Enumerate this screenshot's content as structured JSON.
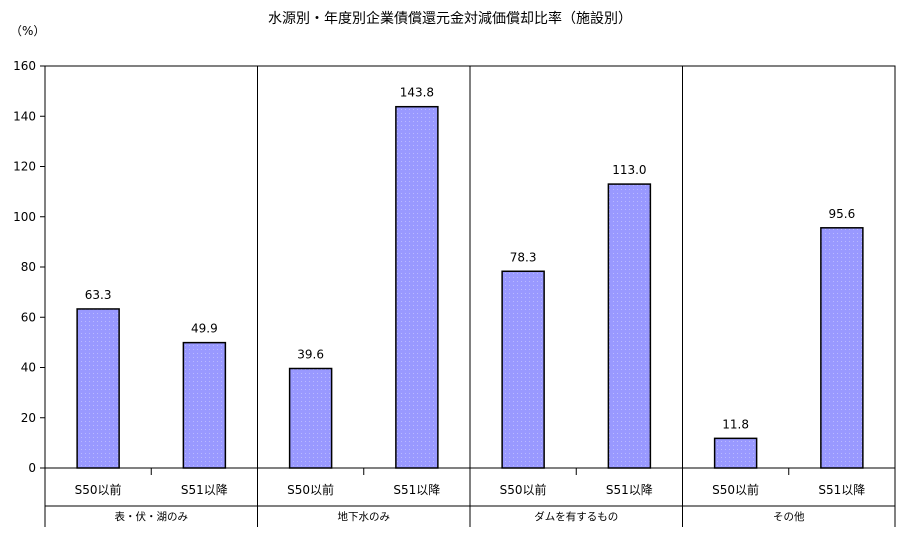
{
  "chart_data": {
    "type": "bar",
    "title": "水源別・年度別企業債償還元金対減価償却比率（施設別）",
    "ylabel": "（%）",
    "ylim": [
      0,
      160
    ],
    "yticks": [
      0,
      20,
      40,
      60,
      80,
      100,
      120,
      140,
      160
    ],
    "grid": false,
    "legend": "none",
    "bar_color": "#9999ff",
    "groups": [
      {
        "name": "表・伏・湖のみ",
        "categories": [
          "S50以前",
          "S51以降"
        ],
        "values": [
          63.3,
          49.9
        ],
        "labels": [
          "63.3",
          "49.9"
        ]
      },
      {
        "name": "地下水のみ",
        "categories": [
          "S50以前",
          "S51以降"
        ],
        "values": [
          39.6,
          143.8
        ],
        "labels": [
          "39.6",
          "143.8"
        ]
      },
      {
        "name": "ダムを有するもの",
        "categories": [
          "S50以前",
          "S51以降"
        ],
        "values": [
          78.3,
          113.0
        ],
        "labels": [
          "78.3",
          "113.0"
        ]
      },
      {
        "name": "その他",
        "categories": [
          "S50以前",
          "S51以降"
        ],
        "values": [
          11.8,
          95.6
        ],
        "labels": [
          "11.8",
          "95.6"
        ]
      }
    ]
  }
}
